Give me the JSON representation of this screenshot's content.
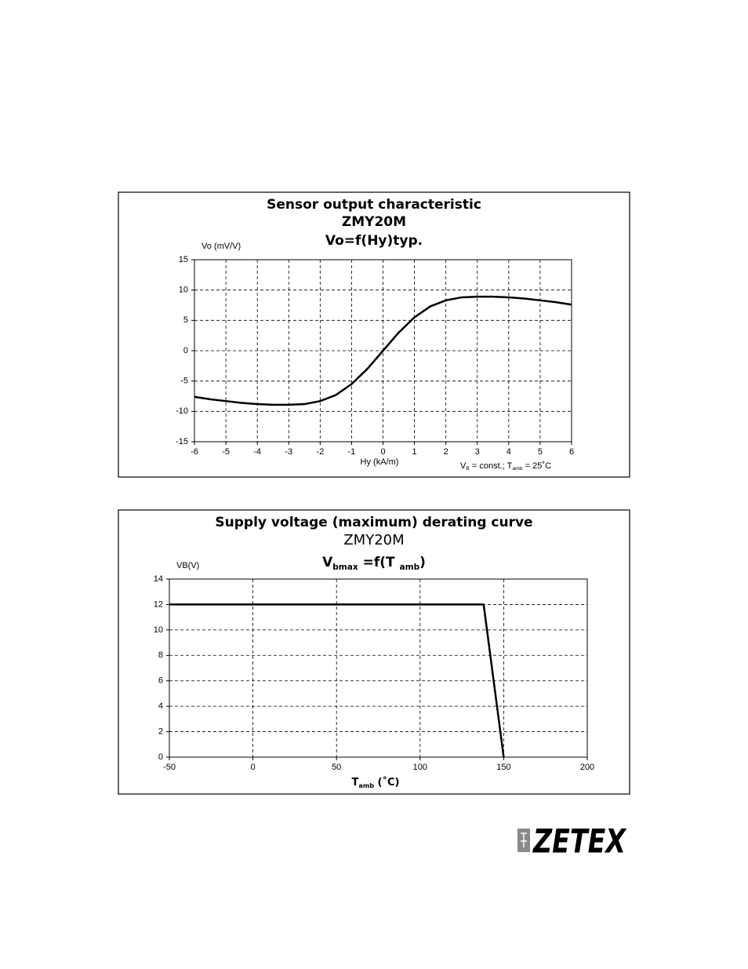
{
  "chart_data": [
    {
      "type": "line",
      "title": "Sensor output characteristic",
      "subtitle": "ZMY20M",
      "formula": "Vo=f(Hy)typ.",
      "y_label": "Vo (mV/V)",
      "x_label": "Hy (kA/m)",
      "annotation": [
        "V",
        "B",
        " = const.; T",
        "amb",
        " = 25˚C"
      ],
      "x": [
        -6,
        -5.5,
        -5,
        -4.5,
        -4,
        -3.5,
        -3,
        -2.5,
        -2,
        -1.5,
        -1,
        -0.5,
        0,
        0.5,
        1,
        1.5,
        2,
        2.5,
        3,
        3.5,
        4,
        4.5,
        5,
        5.5,
        6
      ],
      "series": [
        {
          "name": "Vo",
          "color": "#000000",
          "values": [
            -7.6,
            -8.0,
            -8.3,
            -8.6,
            -8.8,
            -8.9,
            -8.9,
            -8.8,
            -8.3,
            -7.3,
            -5.5,
            -3.0,
            0,
            3.0,
            5.5,
            7.3,
            8.3,
            8.8,
            8.9,
            8.9,
            8.8,
            8.6,
            8.3,
            8.0,
            7.6
          ]
        }
      ],
      "xlim": [
        -6,
        6
      ],
      "xticks": [
        -6,
        -5,
        -4,
        -3,
        -2,
        -1,
        0,
        1,
        2,
        3,
        4,
        5,
        6
      ],
      "ylim": [
        -15,
        15
      ],
      "yticks": [
        -15,
        -10,
        -5,
        0,
        5,
        10,
        15
      ],
      "grid": true
    },
    {
      "type": "line",
      "title": "Supply voltage (maximum) derating curve",
      "subtitle": "ZMY20M",
      "formula": [
        "V",
        "bmax",
        " =f(T ",
        "amb",
        ")"
      ],
      "y_label": "VB(V)",
      "x_label": [
        "T",
        "amb",
        " (˚C)"
      ],
      "x": [
        -50,
        138,
        150
      ],
      "series": [
        {
          "name": "VBmax",
          "color": "#000000",
          "values": [
            12,
            12,
            0
          ]
        }
      ],
      "xlim": [
        -50,
        200
      ],
      "xticks": [
        -50,
        0,
        50,
        100,
        150,
        200
      ],
      "ylim": [
        0,
        14
      ],
      "yticks": [
        0,
        2,
        4,
        6,
        8,
        10,
        12,
        14
      ],
      "grid": true
    }
  ],
  "logo": "ZETEX"
}
